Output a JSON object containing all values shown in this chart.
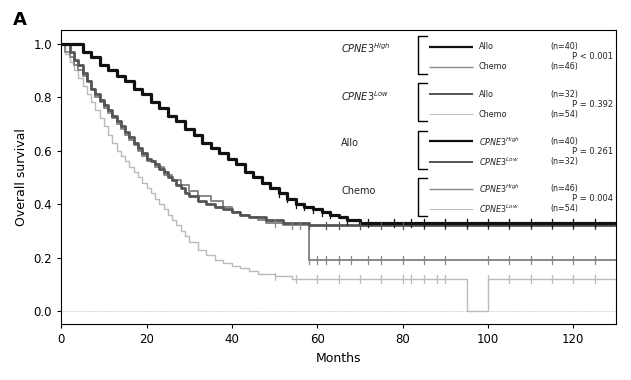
{
  "title_letter": "A",
  "xlabel": "Months",
  "ylabel": "Overall survival",
  "xlim": [
    0,
    130
  ],
  "ylim": [
    -0.05,
    1.05
  ],
  "xticks": [
    0,
    20,
    40,
    60,
    80,
    100,
    120
  ],
  "yticks": [
    0.0,
    0.2,
    0.4,
    0.6,
    0.8,
    1.0
  ],
  "curves": {
    "allo_high": {
      "color": "#111111",
      "linewidth": 2.3,
      "linestyle": "solid",
      "x": [
        0,
        3,
        5,
        7,
        9,
        11,
        13,
        15,
        17,
        19,
        21,
        23,
        25,
        27,
        29,
        31,
        33,
        35,
        37,
        39,
        41,
        43,
        45,
        47,
        49,
        51,
        53,
        55,
        57,
        59,
        61,
        63,
        65,
        67,
        70,
        72,
        75,
        78,
        82,
        85,
        88,
        90,
        95,
        100,
        105,
        110,
        115,
        120,
        125,
        130
      ],
      "y": [
        1.0,
        1.0,
        0.97,
        0.95,
        0.92,
        0.9,
        0.88,
        0.86,
        0.83,
        0.81,
        0.78,
        0.76,
        0.73,
        0.71,
        0.68,
        0.66,
        0.63,
        0.61,
        0.59,
        0.57,
        0.55,
        0.52,
        0.5,
        0.48,
        0.46,
        0.44,
        0.42,
        0.4,
        0.39,
        0.38,
        0.37,
        0.36,
        0.35,
        0.34,
        0.33,
        0.33,
        0.33,
        0.33,
        0.33,
        0.33,
        0.33,
        0.33,
        0.33,
        0.33,
        0.33,
        0.33,
        0.33,
        0.33,
        0.33,
        0.33
      ],
      "censors": [
        51,
        53,
        55,
        57,
        59,
        61,
        63,
        67,
        72,
        78,
        82,
        85,
        90,
        95,
        100,
        105,
        110,
        115,
        120,
        125
      ]
    },
    "allo_low": {
      "color": "#555555",
      "linewidth": 2.0,
      "linestyle": "solid",
      "x": [
        0,
        2,
        3,
        4,
        5,
        6,
        7,
        8,
        9,
        10,
        11,
        12,
        13,
        14,
        15,
        16,
        17,
        18,
        19,
        20,
        21,
        22,
        23,
        24,
        25,
        26,
        27,
        28,
        29,
        30,
        32,
        34,
        36,
        38,
        40,
        42,
        44,
        46,
        48,
        50,
        52,
        54,
        56,
        58,
        60,
        62,
        65,
        68,
        70,
        72,
        75,
        78,
        80,
        82,
        85,
        90,
        95,
        100,
        105,
        110,
        115,
        120,
        125,
        130
      ],
      "y": [
        1.0,
        0.97,
        0.94,
        0.92,
        0.89,
        0.86,
        0.83,
        0.81,
        0.79,
        0.77,
        0.75,
        0.73,
        0.71,
        0.69,
        0.67,
        0.65,
        0.63,
        0.61,
        0.59,
        0.57,
        0.56,
        0.55,
        0.53,
        0.52,
        0.5,
        0.49,
        0.47,
        0.46,
        0.44,
        0.43,
        0.41,
        0.4,
        0.39,
        0.38,
        0.37,
        0.36,
        0.35,
        0.35,
        0.34,
        0.34,
        0.33,
        0.33,
        0.33,
        0.32,
        0.32,
        0.32,
        0.32,
        0.32,
        0.32,
        0.32,
        0.32,
        0.32,
        0.32,
        0.32,
        0.32,
        0.32,
        0.32,
        0.32,
        0.32,
        0.32,
        0.32,
        0.32,
        0.32,
        0.32
      ],
      "censors": [
        58,
        62,
        65,
        70,
        75,
        80,
        85,
        90,
        95,
        100,
        105,
        110,
        115,
        120,
        125
      ]
    },
    "chemo_high": {
      "color": "#888888",
      "linewidth": 1.4,
      "linestyle": "solid",
      "x": [
        0,
        1,
        2,
        3,
        4,
        5,
        6,
        7,
        8,
        9,
        10,
        11,
        12,
        13,
        14,
        15,
        16,
        17,
        18,
        19,
        20,
        22,
        24,
        26,
        28,
        30,
        32,
        35,
        38,
        40,
        42,
        44,
        46,
        48,
        50,
        52,
        54,
        56,
        58,
        60,
        62,
        65,
        68,
        70,
        72,
        75,
        78,
        82,
        85,
        90,
        95,
        100,
        105,
        110,
        115,
        120,
        125,
        130
      ],
      "y": [
        1.0,
        0.97,
        0.95,
        0.92,
        0.9,
        0.88,
        0.86,
        0.83,
        0.8,
        0.78,
        0.76,
        0.74,
        0.72,
        0.7,
        0.68,
        0.66,
        0.64,
        0.62,
        0.6,
        0.58,
        0.56,
        0.54,
        0.51,
        0.49,
        0.47,
        0.45,
        0.43,
        0.41,
        0.39,
        0.37,
        0.36,
        0.35,
        0.34,
        0.33,
        0.33,
        0.32,
        0.32,
        0.32,
        0.19,
        0.19,
        0.19,
        0.19,
        0.19,
        0.19,
        0.19,
        0.19,
        0.19,
        0.19,
        0.19,
        0.19,
        0.19,
        0.19,
        0.19,
        0.19,
        0.19,
        0.19,
        0.19,
        0.19
      ],
      "censors": [
        50,
        54,
        56,
        58,
        60,
        62,
        65,
        68,
        72,
        75,
        80,
        85,
        90,
        100,
        105,
        110,
        115,
        120,
        125
      ]
    },
    "chemo_low": {
      "color": "#bbbbbb",
      "linewidth": 1.0,
      "linestyle": "solid",
      "x": [
        0,
        1,
        2,
        3,
        4,
        5,
        6,
        7,
        8,
        9,
        10,
        11,
        12,
        13,
        14,
        15,
        16,
        17,
        18,
        19,
        20,
        21,
        22,
        23,
        24,
        25,
        26,
        27,
        28,
        29,
        30,
        32,
        34,
        36,
        38,
        40,
        42,
        44,
        46,
        48,
        50,
        52,
        54,
        56,
        58,
        60,
        62,
        65,
        68,
        70,
        72,
        75,
        78,
        80,
        82,
        85,
        88,
        90,
        93,
        95,
        100,
        105,
        110,
        115,
        120,
        125,
        130
      ],
      "y": [
        1.0,
        0.96,
        0.93,
        0.9,
        0.87,
        0.84,
        0.81,
        0.78,
        0.75,
        0.72,
        0.69,
        0.66,
        0.63,
        0.6,
        0.58,
        0.56,
        0.54,
        0.52,
        0.5,
        0.48,
        0.46,
        0.44,
        0.42,
        0.4,
        0.38,
        0.36,
        0.34,
        0.32,
        0.3,
        0.28,
        0.26,
        0.23,
        0.21,
        0.19,
        0.18,
        0.17,
        0.16,
        0.15,
        0.14,
        0.14,
        0.13,
        0.13,
        0.12,
        0.12,
        0.12,
        0.12,
        0.12,
        0.12,
        0.12,
        0.12,
        0.12,
        0.12,
        0.12,
        0.12,
        0.12,
        0.12,
        0.12,
        0.12,
        0.12,
        0.0,
        0.12,
        0.12,
        0.12,
        0.12,
        0.12,
        0.12,
        0.12
      ],
      "censors": [
        50,
        55,
        60,
        65,
        70,
        75,
        80,
        82,
        85,
        88,
        90,
        100,
        105,
        110,
        115,
        120,
        125
      ]
    }
  },
  "plot_bg_color": "#ffffff",
  "legend": {
    "groups": [
      {
        "label": "CPNE3$^{High}$",
        "line1": {
          "color": "#111111",
          "lw": 2.3,
          "ls": "solid",
          "name": "Allo",
          "n": "(n=40)"
        },
        "line2": {
          "color": "#888888",
          "lw": 1.4,
          "ls": "solid",
          "name": "Chemo",
          "n": "(n=46)"
        },
        "pval": "P < 0.001"
      },
      {
        "label": "CPNE3$^{Low}$",
        "line1": {
          "color": "#555555",
          "lw": 2.0,
          "ls": "solid",
          "name": "Allo",
          "n": "(n=32)"
        },
        "line2": {
          "color": "#bbbbbb",
          "lw": 1.0,
          "ls": "solid",
          "name": "Chemo",
          "n": "(n=54)"
        },
        "pval": "P = 0.392"
      },
      {
        "label": "Allo",
        "line1": {
          "color": "#111111",
          "lw": 2.3,
          "ls": "solid",
          "name": "CPNE3$^{High}$",
          "n": "(n=40)"
        },
        "line2": {
          "color": "#555555",
          "lw": 2.0,
          "ls": "solid",
          "name": "CPNE3$^{Low}$",
          "n": "(n=32)"
        },
        "pval": "P = 0.261"
      },
      {
        "label": "Chemo",
        "line1": {
          "color": "#888888",
          "lw": 1.4,
          "ls": "solid",
          "name": "CPNE3$^{High}$",
          "n": "(n=46)"
        },
        "line2": {
          "color": "#bbbbbb",
          "lw": 1.0,
          "ls": "solid",
          "name": "CPNE3$^{Low}$",
          "n": "(n=54)"
        },
        "pval": "P = 0.004"
      }
    ]
  }
}
